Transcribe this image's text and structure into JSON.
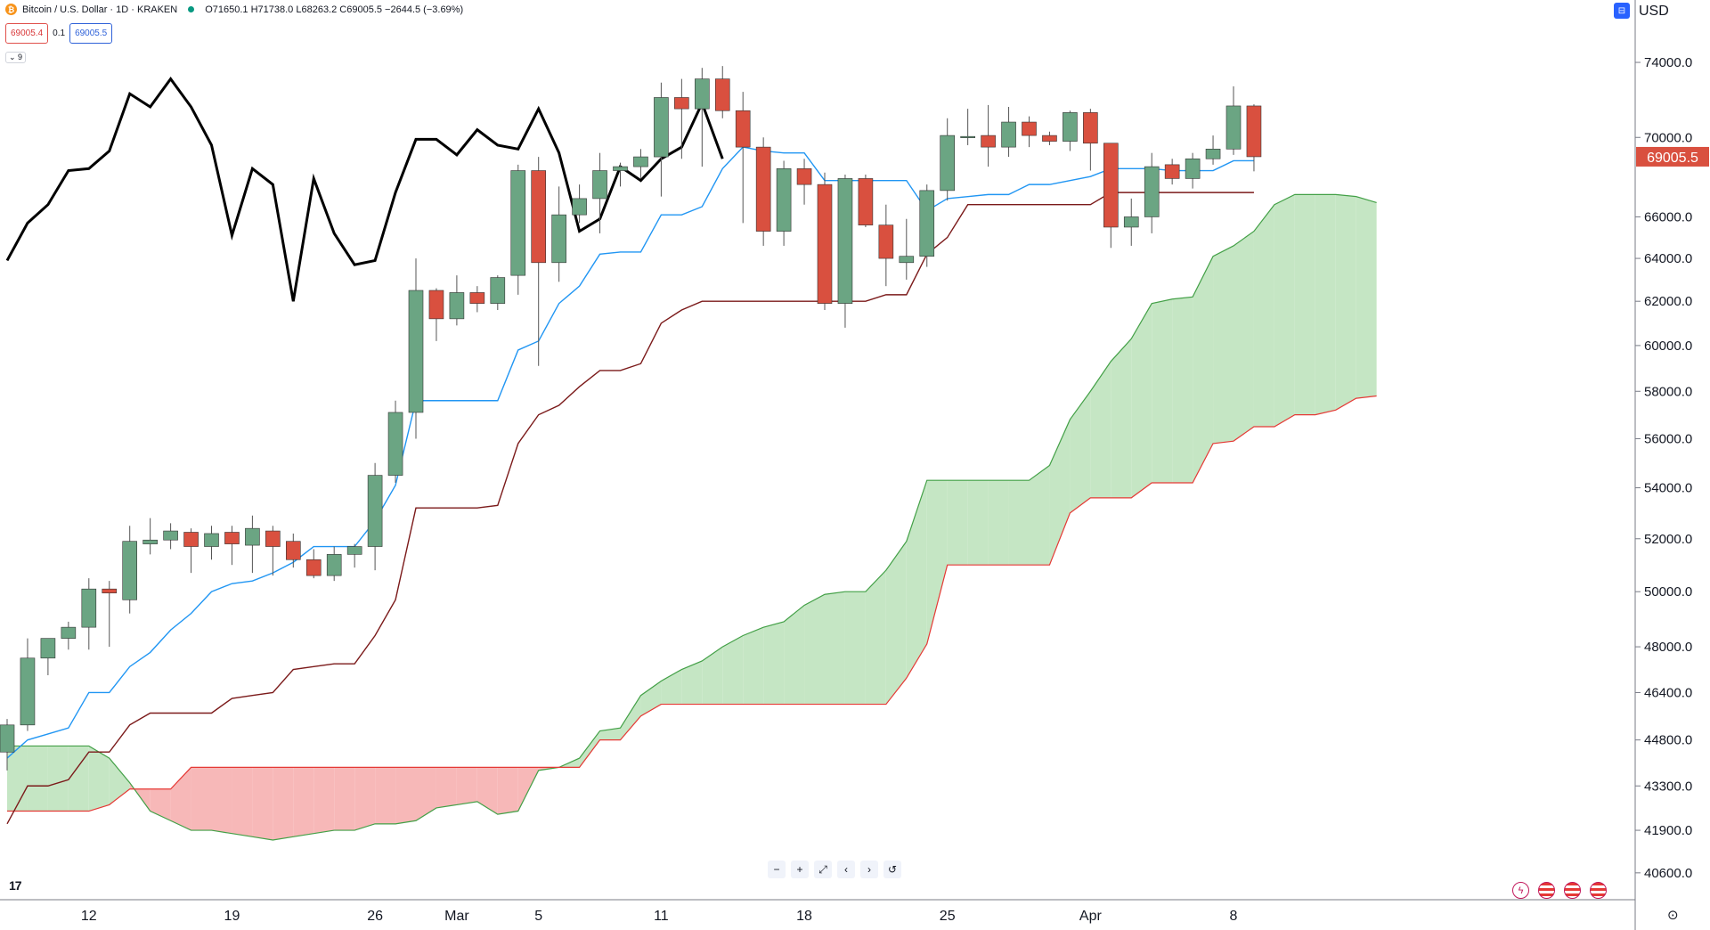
{
  "header": {
    "symbol": "Bitcoin / U.S. Dollar · 1D · KRAKEN",
    "ohlc": "O71650.1  H71738.0  L68263.2  C69005.5  −2644.5 (−3.69%)",
    "sell_price": "69005.4",
    "spread": "0.1",
    "buy_price": "69005.5",
    "indicator_toggle": "⌄ 9",
    "currency": "USD"
  },
  "colors": {
    "up": "#6ba583",
    "down": "#d9503f",
    "tenkan": "#2196f3",
    "kijun": "#7b1a1a",
    "lagging": "#000000",
    "cloud_bull": "#c5e6c4",
    "cloud_bear": "#f7b8b8",
    "span_a": "#43a047",
    "span_b": "#e53935",
    "last_price_bg": "#d9503f"
  },
  "toolbar": {
    "zoom_out": "−",
    "zoom_in": "+",
    "expand": "⤢",
    "left": "‹",
    "right": "›",
    "reset": "↺"
  },
  "chart_data": {
    "type": "candlestick",
    "y_axis": {
      "labels": [
        "74000.0",
        "70000.0",
        "66000.0",
        "64000.0",
        "62000.0",
        "60000.0",
        "58000.0",
        "56000.0",
        "54000.0",
        "52000.0",
        "50000.0",
        "48000.0",
        "46400.0",
        "44800.0",
        "43300.0",
        "41900.0",
        "40600.0"
      ],
      "scale": "log",
      "ylim": [
        39800,
        77500
      ]
    },
    "x_axis": {
      "labels": [
        {
          "text": "12",
          "i": 4
        },
        {
          "text": "19",
          "i": 11
        },
        {
          "text": "26",
          "i": 18
        },
        {
          "text": "Mar",
          "i": 22
        },
        {
          "text": "5",
          "i": 26
        },
        {
          "text": "11",
          "i": 32
        },
        {
          "text": "18",
          "i": 39
        },
        {
          "text": "25",
          "i": 46
        },
        {
          "text": "Apr",
          "i": 53
        },
        {
          "text": "8",
          "i": 60
        }
      ]
    },
    "last_price": 69005.5,
    "last_price_label": "69005.5",
    "candles": [
      {
        "o": 44400,
        "h": 45500,
        "l": 43800,
        "c": 45300
      },
      {
        "o": 45300,
        "h": 48300,
        "l": 45100,
        "c": 47600
      },
      {
        "o": 47600,
        "h": 48200,
        "l": 47000,
        "c": 48300
      },
      {
        "o": 48300,
        "h": 48900,
        "l": 47900,
        "c": 48700
      },
      {
        "o": 48700,
        "h": 50500,
        "l": 47900,
        "c": 50100
      },
      {
        "o": 50100,
        "h": 50400,
        "l": 48000,
        "c": 49950
      },
      {
        "o": 49700,
        "h": 52500,
        "l": 49200,
        "c": 51900
      },
      {
        "o": 51800,
        "h": 52800,
        "l": 51400,
        "c": 51950
      },
      {
        "o": 51950,
        "h": 52600,
        "l": 51600,
        "c": 52300
      },
      {
        "o": 52250,
        "h": 52400,
        "l": 50700,
        "c": 51700
      },
      {
        "o": 51700,
        "h": 52500,
        "l": 51200,
        "c": 52200
      },
      {
        "o": 52250,
        "h": 52500,
        "l": 51000,
        "c": 51800
      },
      {
        "o": 51750,
        "h": 52900,
        "l": 50700,
        "c": 52400
      },
      {
        "o": 52300,
        "h": 52500,
        "l": 50600,
        "c": 51700
      },
      {
        "o": 51900,
        "h": 52200,
        "l": 50900,
        "c": 51200
      },
      {
        "o": 51200,
        "h": 51600,
        "l": 50500,
        "c": 50600
      },
      {
        "o": 50600,
        "h": 51700,
        "l": 50400,
        "c": 51400
      },
      {
        "o": 51400,
        "h": 51800,
        "l": 50900,
        "c": 51700
      },
      {
        "o": 51700,
        "h": 55000,
        "l": 50800,
        "c": 54500
      },
      {
        "o": 54500,
        "h": 57600,
        "l": 54200,
        "c": 57100
      },
      {
        "o": 57100,
        "h": 64000,
        "l": 56000,
        "c": 62500
      },
      {
        "o": 62500,
        "h": 62600,
        "l": 60200,
        "c": 61200
      },
      {
        "o": 61200,
        "h": 63200,
        "l": 60900,
        "c": 62400
      },
      {
        "o": 62400,
        "h": 62700,
        "l": 61500,
        "c": 61900
      },
      {
        "o": 61900,
        "h": 63200,
        "l": 61600,
        "c": 63100
      },
      {
        "o": 63200,
        "h": 68600,
        "l": 62300,
        "c": 68300
      },
      {
        "o": 68300,
        "h": 69000,
        "l": 59100,
        "c": 63800
      },
      {
        "o": 63800,
        "h": 67500,
        "l": 62900,
        "c": 66100
      },
      {
        "o": 66100,
        "h": 67600,
        "l": 65700,
        "c": 66900
      },
      {
        "o": 66900,
        "h": 69200,
        "l": 65200,
        "c": 68300
      },
      {
        "o": 68300,
        "h": 68700,
        "l": 67500,
        "c": 68500
      },
      {
        "o": 68500,
        "h": 69400,
        "l": 67900,
        "c": 69000
      },
      {
        "o": 69000,
        "h": 72900,
        "l": 67000,
        "c": 72100
      },
      {
        "o": 72100,
        "h": 73100,
        "l": 68900,
        "c": 71500
      },
      {
        "o": 71500,
        "h": 73700,
        "l": 68500,
        "c": 73100
      },
      {
        "o": 73100,
        "h": 73800,
        "l": 71000,
        "c": 71400
      },
      {
        "o": 71400,
        "h": 72400,
        "l": 65700,
        "c": 69500
      },
      {
        "o": 69500,
        "h": 70000,
        "l": 64600,
        "c": 65300
      },
      {
        "o": 65300,
        "h": 68800,
        "l": 64600,
        "c": 68400
      },
      {
        "o": 68400,
        "h": 68900,
        "l": 66600,
        "c": 67600
      },
      {
        "o": 67600,
        "h": 68200,
        "l": 61600,
        "c": 61900
      },
      {
        "o": 61900,
        "h": 68100,
        "l": 60800,
        "c": 67900
      },
      {
        "o": 67900,
        "h": 68100,
        "l": 65500,
        "c": 65600
      },
      {
        "o": 65600,
        "h": 66600,
        "l": 62700,
        "c": 64000
      },
      {
        "o": 63800,
        "h": 65900,
        "l": 63000,
        "c": 64100
      },
      {
        "o": 64100,
        "h": 67600,
        "l": 63600,
        "c": 67300
      },
      {
        "o": 67300,
        "h": 71000,
        "l": 66800,
        "c": 70100
      },
      {
        "o": 70050,
        "h": 71500,
        "l": 69600,
        "c": 70050
      },
      {
        "o": 70100,
        "h": 71700,
        "l": 68500,
        "c": 69500
      },
      {
        "o": 69500,
        "h": 71600,
        "l": 69000,
        "c": 70800
      },
      {
        "o": 70800,
        "h": 71100,
        "l": 69500,
        "c": 70100
      },
      {
        "o": 70100,
        "h": 70300,
        "l": 69600,
        "c": 69800
      },
      {
        "o": 69800,
        "h": 71400,
        "l": 69300,
        "c": 71300
      },
      {
        "o": 71300,
        "h": 71500,
        "l": 68300,
        "c": 69700
      },
      {
        "o": 69700,
        "h": 69700,
        "l": 64500,
        "c": 65500
      },
      {
        "o": 65500,
        "h": 66900,
        "l": 64600,
        "c": 66000
      },
      {
        "o": 66000,
        "h": 69200,
        "l": 65200,
        "c": 68500
      },
      {
        "o": 68600,
        "h": 68900,
        "l": 67600,
        "c": 67900
      },
      {
        "o": 67900,
        "h": 69200,
        "l": 67400,
        "c": 68900
      },
      {
        "o": 68900,
        "h": 70100,
        "l": 68600,
        "c": 69400
      },
      {
        "o": 69400,
        "h": 72700,
        "l": 69100,
        "c": 71650
      },
      {
        "o": 71650,
        "h": 71738,
        "l": 68263,
        "c": 69005.5
      }
    ],
    "tenkan": [
      44200,
      44800,
      45000,
      45200,
      46400,
      46400,
      47300,
      47800,
      48600,
      49200,
      50000,
      50300,
      50400,
      50700,
      51100,
      51700,
      51700,
      51700,
      52700,
      54100,
      57600,
      57600,
      57600,
      57600,
      57600,
      59800,
      60200,
      61900,
      62700,
      64200,
      64300,
      64300,
      66100,
      66100,
      66500,
      68400,
      69500,
      69300,
      69200,
      69200,
      67800,
      67800,
      67800,
      67800,
      67800,
      66300,
      66900,
      67000,
      67100,
      67100,
      67600,
      67600,
      67800,
      68000,
      68400,
      68400,
      68400,
      68300,
      68300,
      68300,
      68800,
      68800
    ],
    "kijun": [
      42100,
      43300,
      43300,
      43500,
      44400,
      44400,
      45300,
      45700,
      45700,
      45700,
      45700,
      46200,
      46300,
      46400,
      47200,
      47300,
      47400,
      47400,
      48400,
      49700,
      53200,
      53200,
      53200,
      53200,
      53300,
      55800,
      57000,
      57400,
      58200,
      58900,
      58900,
      59200,
      61000,
      61600,
      62000,
      62000,
      62000,
      62000,
      62000,
      62000,
      62000,
      62000,
      62000,
      62300,
      62300,
      64200,
      65000,
      66600,
      66600,
      66600,
      66600,
      66600,
      66600,
      66600,
      67200,
      67200,
      67200,
      67200,
      67200,
      67200,
      67200,
      67200
    ],
    "lagging": [
      63900,
      65700,
      66600,
      68300,
      68400,
      69300,
      72300,
      71600,
      73100,
      71600,
      69600,
      65100,
      68400,
      67600,
      62000,
      67900,
      65200,
      63700,
      63900,
      67200,
      69900,
      69900,
      69100,
      70400,
      69600,
      69400,
      71500,
      69200,
      65300,
      65900,
      68500,
      67800,
      68900,
      69500,
      71800,
      68900
    ],
    "span_a": [
      44600,
      44600,
      44600,
      44600,
      44600,
      44200,
      43400,
      42500,
      42200,
      41900,
      41900,
      41800,
      41700,
      41600,
      41700,
      41800,
      41900,
      41900,
      42100,
      42100,
      42200,
      42600,
      42700,
      42800,
      42400,
      42500,
      43800,
      43900,
      44200,
      45100,
      45200,
      46300,
      46800,
      47200,
      47500,
      48000,
      48400,
      48700,
      48900,
      49500,
      49900,
      50000,
      50000,
      50800,
      51900,
      54300,
      54300,
      54300,
      54300,
      54300,
      54300,
      54900,
      56800,
      58000,
      59300,
      60300,
      61900,
      62100,
      62200,
      64100,
      64600,
      65300,
      66600,
      67100,
      67100,
      67100,
      67000,
      66700
    ],
    "span_b": [
      42500,
      42500,
      42500,
      42500,
      42500,
      42700,
      43200,
      43200,
      43200,
      43900,
      43900,
      43900,
      43900,
      43900,
      43900,
      43900,
      43900,
      43900,
      43900,
      43900,
      43900,
      43900,
      43900,
      43900,
      43900,
      43900,
      43900,
      43900,
      43900,
      44800,
      44800,
      45600,
      46000,
      46000,
      46000,
      46000,
      46000,
      46000,
      46000,
      46000,
      46000,
      46000,
      46000,
      46000,
      46900,
      48100,
      51000,
      51000,
      51000,
      51000,
      51000,
      51000,
      53000,
      53600,
      53600,
      53600,
      54200,
      54200,
      54200,
      55800,
      55900,
      56500,
      56500,
      57000,
      57000,
      57200,
      57700,
      57800
    ]
  }
}
